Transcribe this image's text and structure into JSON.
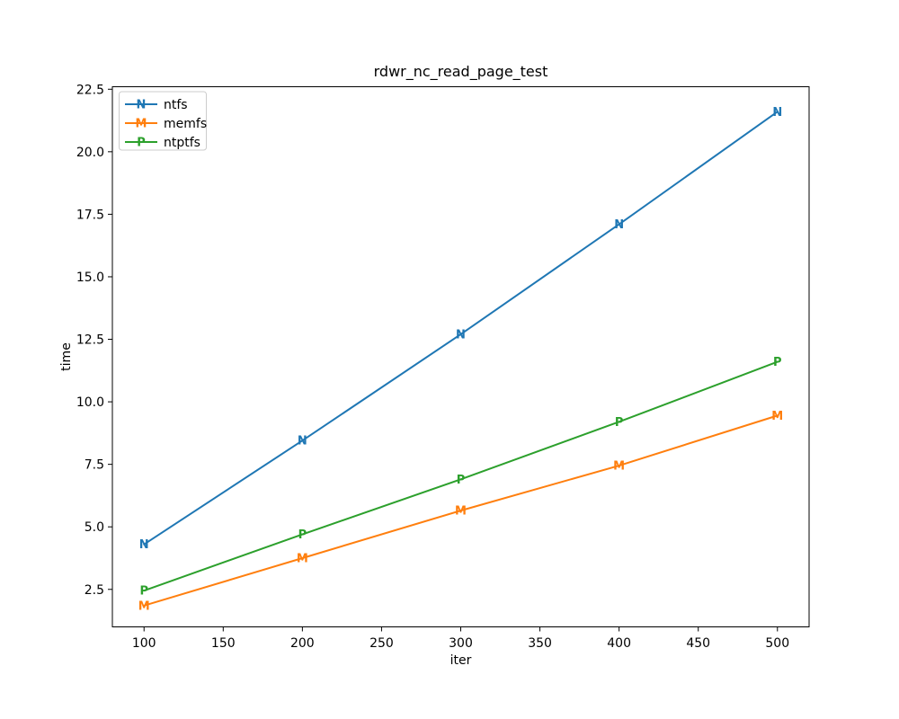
{
  "figure": {
    "background": "#ffffff",
    "text_color": "#000000",
    "spine_color": "#000000"
  },
  "chart_data": {
    "type": "line",
    "title": "rdwr_nc_read_page_test",
    "xlabel": "iter",
    "ylabel": "time",
    "x": [
      100,
      200,
      300,
      400,
      500
    ],
    "series": [
      {
        "name": "ntfs",
        "marker": "N",
        "color": "#1f77b4",
        "values": [
          4.3,
          8.45,
          12.7,
          17.1,
          21.6
        ]
      },
      {
        "name": "memfs",
        "marker": "M",
        "color": "#ff7f0e",
        "values": [
          1.85,
          3.75,
          5.65,
          7.45,
          9.45
        ]
      },
      {
        "name": "ntptfs",
        "marker": "P",
        "color": "#2ca02c",
        "values": [
          2.45,
          4.7,
          6.9,
          9.2,
          11.6
        ]
      }
    ],
    "xticks": [
      100,
      150,
      200,
      250,
      300,
      350,
      400,
      450,
      500
    ],
    "yticks": [
      2.5,
      5.0,
      7.5,
      10.0,
      12.5,
      15.0,
      17.5,
      20.0,
      22.5
    ],
    "xlim": [
      80,
      520
    ],
    "ylim": [
      1.0,
      22.6
    ],
    "grid": false,
    "legend": {
      "position": "upper left",
      "border_color": "#cccccc",
      "background": "#ffffff",
      "entries": [
        "ntfs",
        "memfs",
        "ntptfs"
      ]
    }
  }
}
